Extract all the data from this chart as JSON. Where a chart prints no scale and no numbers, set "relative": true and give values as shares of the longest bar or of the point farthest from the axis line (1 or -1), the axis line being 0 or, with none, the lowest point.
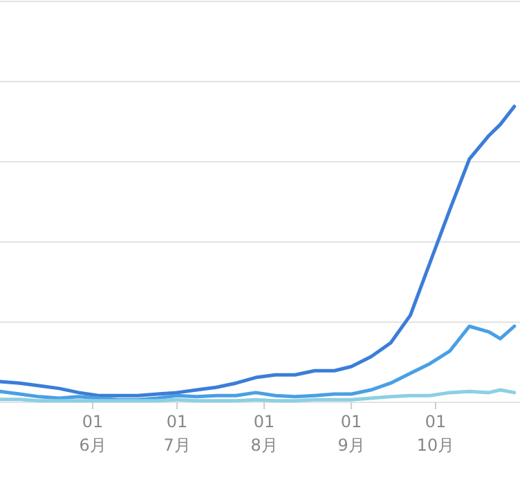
{
  "chart_data": {
    "type": "line",
    "relative": true,
    "grid": "y",
    "marker": "none",
    "line_style": "solid",
    "x": [
      "--04-29",
      "--05-06",
      "--05-13",
      "--05-20",
      "--05-27",
      "--06-03",
      "--06-10",
      "--06-17",
      "--06-24",
      "--07-01",
      "--07-08",
      "--07-15",
      "--07-22",
      "--07-29",
      "--08-05",
      "--08-12",
      "--08-19",
      "--08-26",
      "--09-01",
      "--09-08",
      "--09-15",
      "--09-22",
      "--09-29",
      "--10-06",
      "--10-13",
      "--10-20",
      "--10-24",
      "--10-29"
    ],
    "xlim": [
      "--04-29",
      "--10-31"
    ],
    "xticks": [
      {
        "value": "--06-01",
        "label": "01\n6月"
      },
      {
        "value": "--07-01",
        "label": "01\n7月"
      },
      {
        "value": "--08-01",
        "label": "01\n8月"
      },
      {
        "value": "--09-01",
        "label": "01\n9月"
      },
      {
        "value": "--10-01",
        "label": "01\n10月"
      }
    ],
    "series": [
      {
        "color": "#3b7dd8",
        "values": [
          0.07,
          0.065,
          0.056,
          0.047,
          0.033,
          0.023,
          0.023,
          0.023,
          0.028,
          0.033,
          0.042,
          0.051,
          0.065,
          0.084,
          0.093,
          0.093,
          0.107,
          0.107,
          0.121,
          0.154,
          0.201,
          0.294,
          0.472,
          0.65,
          0.822,
          0.902,
          0.939,
          1.0
        ]
      },
      {
        "color": "#4a9fe3",
        "values": [
          0.037,
          0.028,
          0.019,
          0.014,
          0.019,
          0.014,
          0.009,
          0.009,
          0.014,
          0.023,
          0.019,
          0.023,
          0.023,
          0.033,
          0.023,
          0.019,
          0.023,
          0.028,
          0.028,
          0.042,
          0.065,
          0.098,
          0.131,
          0.173,
          0.257,
          0.238,
          0.215,
          0.257
        ]
      },
      {
        "color": "#8ccfe4",
        "values": [
          0.01,
          0.01,
          0.005,
          0.005,
          0.005,
          0.005,
          0.005,
          0.005,
          0.005,
          0.009,
          0.005,
          0.005,
          0.005,
          0.009,
          0.005,
          0.005,
          0.009,
          0.009,
          0.009,
          0.014,
          0.019,
          0.023,
          0.023,
          0.033,
          0.037,
          0.033,
          0.042,
          0.033
        ]
      }
    ]
  }
}
